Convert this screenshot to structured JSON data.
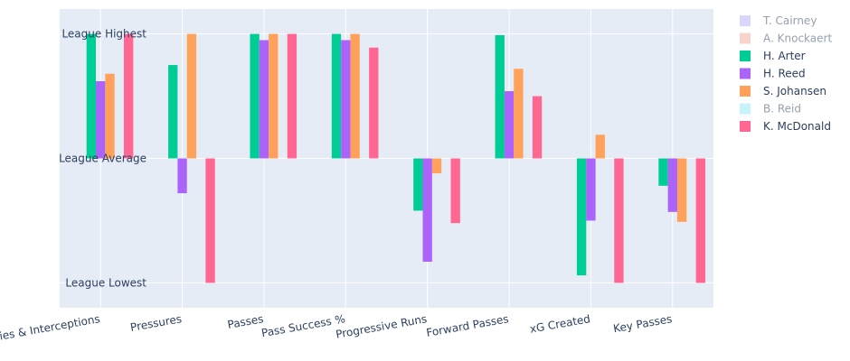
{
  "chart_data": {
    "type": "bar",
    "categories": [
      "Ball Recoveries & Interceptions",
      "Pressures",
      "Passes",
      "Pass Success %",
      "Progressive Runs",
      "Forward Passes",
      "xG Created",
      "Key Passes"
    ],
    "ytick_labels": [
      {
        "label": "League Highest",
        "value": 1
      },
      {
        "label": "League Average",
        "value": 0
      },
      {
        "label": "League Lowest",
        "value": -1
      }
    ],
    "ylim": [
      -1.2,
      1.2
    ],
    "grid": true,
    "legend_position": "top-right",
    "series": [
      {
        "name": "T. Cairney",
        "color": "#b1aefb",
        "visible": false,
        "values": [
          null,
          null,
          null,
          null,
          null,
          null,
          null,
          null
        ]
      },
      {
        "name": "A. Knockaert",
        "color": "#f4a99c",
        "visible": false,
        "values": [
          null,
          null,
          null,
          null,
          null,
          null,
          null,
          null
        ]
      },
      {
        "name": "H. Arter",
        "color": "#00cc96",
        "visible": true,
        "values": [
          1.0,
          0.75,
          1.0,
          1.0,
          -0.42,
          0.99,
          -0.94,
          -0.22
        ]
      },
      {
        "name": "H. Reed",
        "color": "#ab63fa",
        "visible": true,
        "values": [
          0.62,
          -0.28,
          0.95,
          0.95,
          -0.83,
          0.54,
          -0.5,
          -0.43
        ]
      },
      {
        "name": "S. Johansen",
        "color": "#ffa15a",
        "visible": true,
        "values": [
          0.68,
          1.0,
          1.0,
          1.0,
          -0.12,
          0.72,
          0.19,
          -0.51
        ]
      },
      {
        "name": "B. Reid",
        "color": "#8ee6f4",
        "visible": false,
        "values": [
          null,
          null,
          null,
          null,
          null,
          null,
          null,
          null
        ]
      },
      {
        "name": "K. McDonald",
        "color": "#ff6692",
        "visible": true,
        "values": [
          1.0,
          -1.0,
          1.0,
          0.89,
          -0.52,
          0.5,
          -1.0,
          -1.0
        ]
      }
    ]
  }
}
